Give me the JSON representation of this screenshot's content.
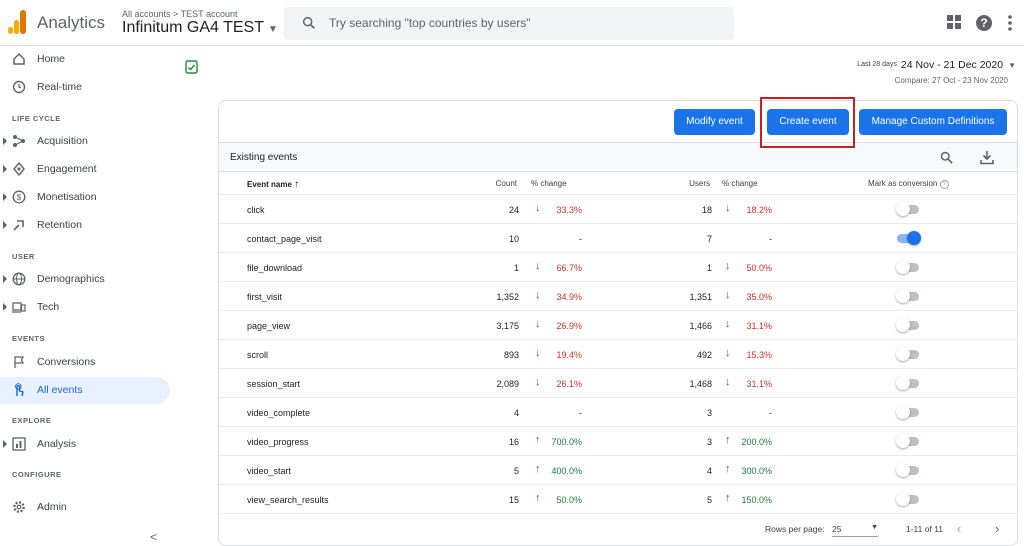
{
  "topbar": {
    "app_name": "Analytics",
    "breadcrumb": "All accounts > TEST account",
    "property": "Infinitum GA4 TEST",
    "search_placeholder": "Try searching \"top countries by users\"",
    "icons": [
      "apps-icon",
      "help-icon",
      "more-vert-icon"
    ]
  },
  "sidebar": {
    "sections": {
      "lifecycle": "LIFE CYCLE",
      "user": "USER",
      "events": "EVENTS",
      "explore": "EXPLORE",
      "configure": "CONFIGURE"
    },
    "items": [
      {
        "label": "Home",
        "icon": "home-icon",
        "expandable": false,
        "active": false
      },
      {
        "label": "Real-time",
        "icon": "clock-icon",
        "expandable": false,
        "active": false
      },
      {
        "label": "Acquisition",
        "icon": "acquisition-icon",
        "expandable": true,
        "active": false
      },
      {
        "label": "Engagement",
        "icon": "engagement-icon",
        "expandable": true,
        "active": false
      },
      {
        "label": "Monetisation",
        "icon": "dollar-icon",
        "expandable": true,
        "active": false
      },
      {
        "label": "Retention",
        "icon": "retention-icon",
        "expandable": true,
        "active": false
      },
      {
        "label": "Demographics",
        "icon": "globe-icon",
        "expandable": true,
        "active": false
      },
      {
        "label": "Tech",
        "icon": "devices-icon",
        "expandable": true,
        "active": false
      },
      {
        "label": "Conversions",
        "icon": "flag-icon",
        "expandable": false,
        "active": false
      },
      {
        "label": "All events",
        "icon": "touch-icon",
        "expandable": false,
        "active": true
      },
      {
        "label": "Analysis",
        "icon": "analysis-icon",
        "expandable": true,
        "active": false
      },
      {
        "label": "Admin",
        "icon": "gear-icon",
        "expandable": false,
        "active": false
      }
    ],
    "collapse": "<"
  },
  "date": {
    "range_label": "Last 28 days",
    "range": "24 Nov - 21 Dec 2020",
    "compare": "Compare: 27 Oct - 23 Nov 2020"
  },
  "buttons": {
    "modify": "Modify event",
    "create": "Create event",
    "manage": "Manage Custom Definitions"
  },
  "table": {
    "title": "Existing events",
    "headers": {
      "event_name": "Event name",
      "count": "Count",
      "count_change": "% change",
      "users": "Users",
      "users_change": "% change",
      "conversion": "Mark as conversion"
    },
    "rows": [
      {
        "name": "click",
        "count": "24",
        "count_dir": "down",
        "count_change": "33.3%",
        "users": "18",
        "users_dir": "down",
        "users_change": "18.2%",
        "conversion": false
      },
      {
        "name": "contact_page_visit",
        "count": "10",
        "count_dir": "none",
        "count_change": "-",
        "users": "7",
        "users_dir": "none",
        "users_change": "-",
        "conversion": true
      },
      {
        "name": "file_download",
        "count": "1",
        "count_dir": "down",
        "count_change": "66.7%",
        "users": "1",
        "users_dir": "down",
        "users_change": "50.0%",
        "conversion": false
      },
      {
        "name": "first_visit",
        "count": "1,352",
        "count_dir": "down",
        "count_change": "34.9%",
        "users": "1,351",
        "users_dir": "down",
        "users_change": "35.0%",
        "conversion": false
      },
      {
        "name": "page_view",
        "count": "3,175",
        "count_dir": "down",
        "count_change": "26.9%",
        "users": "1,466",
        "users_dir": "down",
        "users_change": "31.1%",
        "conversion": false
      },
      {
        "name": "scroll",
        "count": "893",
        "count_dir": "down",
        "count_change": "19.4%",
        "users": "492",
        "users_dir": "down",
        "users_change": "15.3%",
        "conversion": false
      },
      {
        "name": "session_start",
        "count": "2,089",
        "count_dir": "down",
        "count_change": "26.1%",
        "users": "1,468",
        "users_dir": "down",
        "users_change": "31.1%",
        "conversion": false
      },
      {
        "name": "video_complete",
        "count": "4",
        "count_dir": "none",
        "count_change": "-",
        "users": "3",
        "users_dir": "none",
        "users_change": "-",
        "conversion": false
      },
      {
        "name": "video_progress",
        "count": "16",
        "count_dir": "up",
        "count_change": "700.0%",
        "users": "3",
        "users_dir": "up",
        "users_change": "200.0%",
        "conversion": false
      },
      {
        "name": "video_start",
        "count": "5",
        "count_dir": "up",
        "count_change": "400.0%",
        "users": "4",
        "users_dir": "up",
        "users_change": "300.0%",
        "conversion": false
      },
      {
        "name": "view_search_results",
        "count": "15",
        "count_dir": "up",
        "count_change": "50.0%",
        "users": "5",
        "users_dir": "up",
        "users_change": "150.0%",
        "conversion": false
      }
    ],
    "footer": {
      "rows_per_page_label": "Rows per page:",
      "rows_per_page": "25",
      "range": "1-11 of 11"
    }
  },
  "colors": {
    "accent": "#1a73e8",
    "negative": "#d93025",
    "positive": "#188038",
    "highlight": "#c5221f"
  }
}
